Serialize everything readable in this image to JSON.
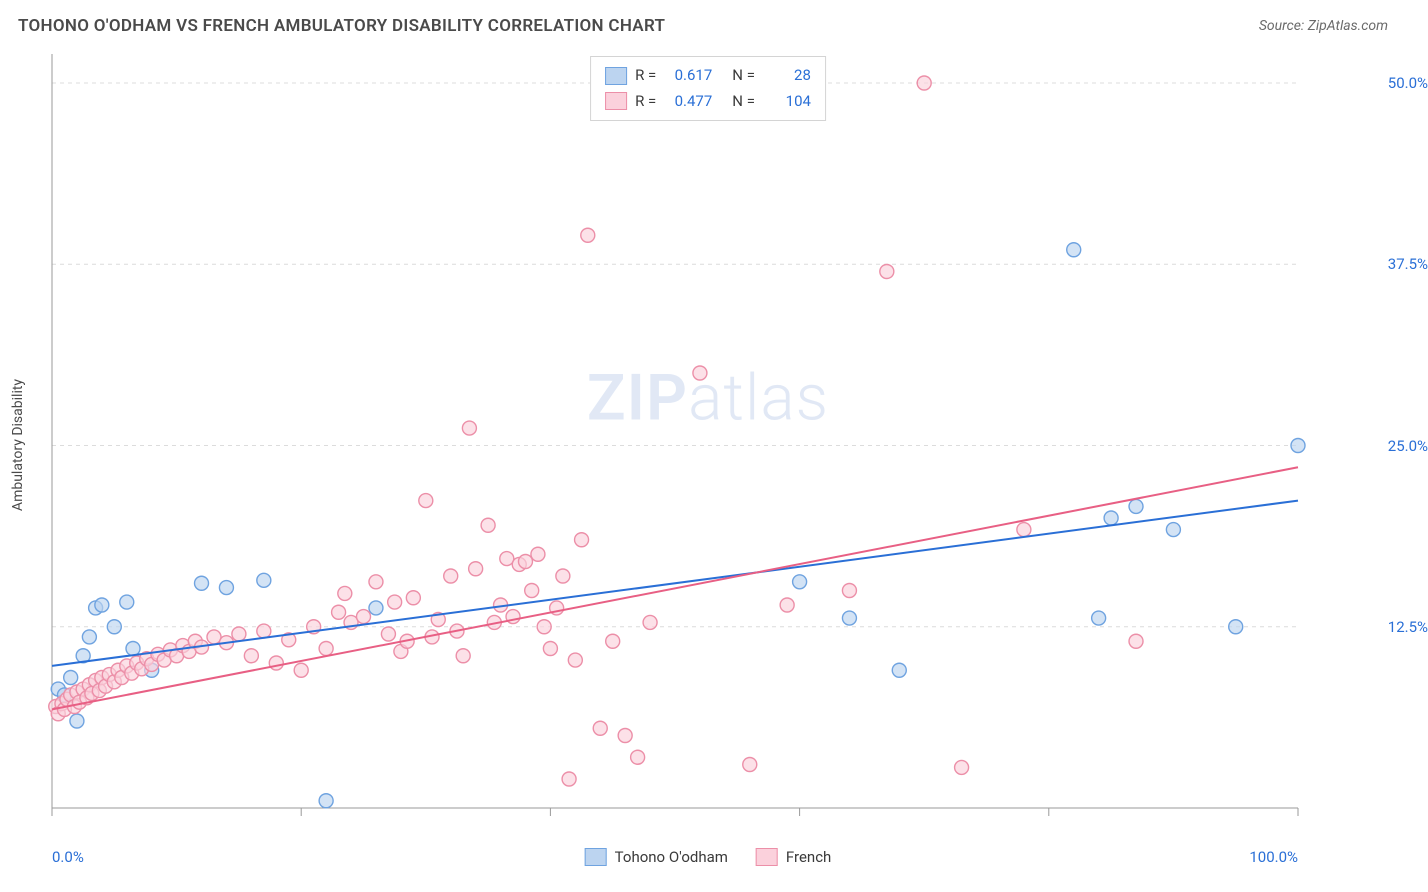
{
  "header": {
    "title": "TOHONO O'ODHAM VS FRENCH AMBULATORY DISABILITY CORRELATION CHART",
    "source": "Source: ZipAtlas.com"
  },
  "chart": {
    "type": "scatter",
    "ylabel": "Ambulatory Disability",
    "xlim": [
      0,
      100
    ],
    "ylim": [
      0,
      52
    ],
    "x_ticks": [
      0,
      20,
      40,
      60,
      80,
      100
    ],
    "x_tick_labels": {
      "0": "0.0%",
      "100": "100.0%"
    },
    "y_gridlines": [
      12.5,
      25.0,
      37.5,
      50.0
    ],
    "y_tick_labels": [
      "12.5%",
      "25.0%",
      "37.5%",
      "50.0%"
    ],
    "grid_color": "#dcdcdc",
    "axis_color": "#9a9a9a",
    "background_color": "#ffffff",
    "tick_label_color": "#2a6fd6",
    "label_color": "#4a4a4a",
    "marker_radius": 7,
    "marker_stroke_width": 1.4,
    "line_width": 2,
    "watermark": "ZIPatlas",
    "series": [
      {
        "name": "Tohono O'odham",
        "fill": "#bcd4f0",
        "stroke": "#6fa3e0",
        "line_color": "#2a6fd6",
        "R": "0.617",
        "N": "28",
        "trend": {
          "x1": 0,
          "y1": 9.8,
          "x2": 100,
          "y2": 21.2
        },
        "points": [
          [
            0.5,
            8.2
          ],
          [
            1,
            7.8
          ],
          [
            1.5,
            9.0
          ],
          [
            2,
            6.0
          ],
          [
            2.5,
            10.5
          ],
          [
            3,
            11.8
          ],
          [
            3.5,
            13.8
          ],
          [
            4,
            14.0
          ],
          [
            5,
            12.5
          ],
          [
            6,
            14.2
          ],
          [
            6.5,
            11.0
          ],
          [
            8,
            9.5
          ],
          [
            12,
            15.5
          ],
          [
            14,
            15.2
          ],
          [
            17,
            15.7
          ],
          [
            22,
            0.5
          ],
          [
            26,
            13.8
          ],
          [
            60,
            15.6
          ],
          [
            64,
            13.1
          ],
          [
            68,
            9.5
          ],
          [
            82,
            38.5
          ],
          [
            84,
            13.1
          ],
          [
            85,
            20.0
          ],
          [
            87,
            20.8
          ],
          [
            90,
            19.2
          ],
          [
            95,
            12.5
          ],
          [
            100,
            25.0
          ]
        ]
      },
      {
        "name": "French",
        "fill": "#fbd1dc",
        "stroke": "#ec8fa8",
        "line_color": "#e85f84",
        "R": "0.477",
        "N": "104",
        "trend": {
          "x1": 0,
          "y1": 6.8,
          "x2": 100,
          "y2": 23.5
        },
        "points": [
          [
            0.3,
            7.0
          ],
          [
            0.5,
            6.5
          ],
          [
            0.8,
            7.2
          ],
          [
            1,
            6.8
          ],
          [
            1.2,
            7.5
          ],
          [
            1.5,
            7.8
          ],
          [
            1.8,
            7.0
          ],
          [
            2,
            8.0
          ],
          [
            2.2,
            7.3
          ],
          [
            2.5,
            8.2
          ],
          [
            2.8,
            7.6
          ],
          [
            3,
            8.5
          ],
          [
            3.2,
            7.9
          ],
          [
            3.5,
            8.8
          ],
          [
            3.8,
            8.1
          ],
          [
            4,
            9.0
          ],
          [
            4.3,
            8.4
          ],
          [
            4.6,
            9.2
          ],
          [
            5,
            8.7
          ],
          [
            5.3,
            9.5
          ],
          [
            5.6,
            9.0
          ],
          [
            6,
            9.8
          ],
          [
            6.4,
            9.3
          ],
          [
            6.8,
            10.0
          ],
          [
            7.2,
            9.6
          ],
          [
            7.6,
            10.3
          ],
          [
            8,
            9.9
          ],
          [
            8.5,
            10.6
          ],
          [
            9,
            10.2
          ],
          [
            9.5,
            10.9
          ],
          [
            10,
            10.5
          ],
          [
            10.5,
            11.2
          ],
          [
            11,
            10.8
          ],
          [
            11.5,
            11.5
          ],
          [
            12,
            11.1
          ],
          [
            13,
            11.8
          ],
          [
            14,
            11.4
          ],
          [
            15,
            12.0
          ],
          [
            16,
            10.5
          ],
          [
            17,
            12.2
          ],
          [
            18,
            10.0
          ],
          [
            19,
            11.6
          ],
          [
            20,
            9.5
          ],
          [
            21,
            12.5
          ],
          [
            22,
            11.0
          ],
          [
            23,
            13.5
          ],
          [
            23.5,
            14.8
          ],
          [
            24,
            12.8
          ],
          [
            25,
            13.2
          ],
          [
            26,
            15.6
          ],
          [
            27,
            12.0
          ],
          [
            27.5,
            14.2
          ],
          [
            28,
            10.8
          ],
          [
            28.5,
            11.5
          ],
          [
            29,
            14.5
          ],
          [
            30,
            21.2
          ],
          [
            30.5,
            11.8
          ],
          [
            31,
            13.0
          ],
          [
            32,
            16.0
          ],
          [
            32.5,
            12.2
          ],
          [
            33,
            10.5
          ],
          [
            33.5,
            26.2
          ],
          [
            34,
            16.5
          ],
          [
            35,
            19.5
          ],
          [
            35.5,
            12.8
          ],
          [
            36,
            14.0
          ],
          [
            36.5,
            17.2
          ],
          [
            37,
            13.2
          ],
          [
            37.5,
            16.8
          ],
          [
            38,
            17.0
          ],
          [
            38.5,
            15.0
          ],
          [
            39,
            17.5
          ],
          [
            39.5,
            12.5
          ],
          [
            40,
            11.0
          ],
          [
            40.5,
            13.8
          ],
          [
            41,
            16.0
          ],
          [
            41.5,
            2.0
          ],
          [
            42,
            10.2
          ],
          [
            42.5,
            18.5
          ],
          [
            43,
            39.5
          ],
          [
            44,
            5.5
          ],
          [
            45,
            11.5
          ],
          [
            46,
            5.0
          ],
          [
            47,
            3.5
          ],
          [
            48,
            12.8
          ],
          [
            52,
            30.0
          ],
          [
            56,
            3.0
          ],
          [
            59,
            14.0
          ],
          [
            64,
            15.0
          ],
          [
            67,
            37.0
          ],
          [
            70,
            50.0
          ],
          [
            73,
            2.8
          ],
          [
            78,
            19.2
          ],
          [
            87,
            11.5
          ]
        ]
      }
    ],
    "legend_top": [
      {
        "series": 0,
        "r_label": "R =",
        "n_label": "N ="
      },
      {
        "series": 1,
        "r_label": "R =",
        "n_label": "N ="
      }
    ]
  }
}
